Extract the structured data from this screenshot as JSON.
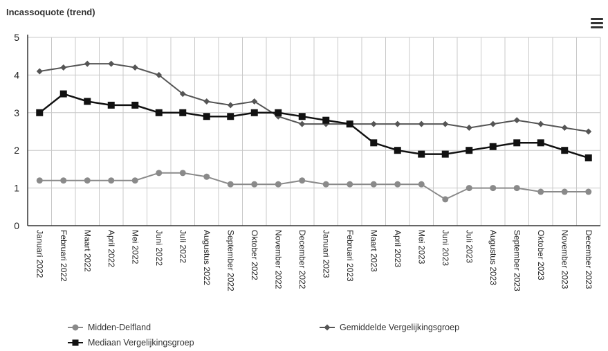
{
  "title": "Incassoquote (trend)",
  "menu_icon": "hamburger-menu-icon",
  "chart_data": {
    "type": "line",
    "title": "Incassoquote (trend)",
    "xlabel": "",
    "ylabel": "",
    "ylim": [
      0,
      5
    ],
    "yticks": [
      "0",
      "1",
      "2",
      "3",
      "4",
      "5"
    ],
    "grid": true,
    "legend_position": "bottom",
    "categories": [
      "Januari 2022",
      "Februari 2022",
      "Maart 2022",
      "April 2022",
      "Mei 2022",
      "Juni 2022",
      "Juli 2022",
      "Augustus 2022",
      "September 2022",
      "Oktober 2022",
      "November 2022",
      "December 2022",
      "Januari 2023",
      "Februari 2023",
      "Maart 2023",
      "April 2023",
      "Mei 2023",
      "Juni 2023",
      "Juli 2023",
      "Augustus 2023",
      "September 2023",
      "Oktober 2023",
      "November 2023",
      "December 2023"
    ],
    "series": [
      {
        "name": "Midden-Delfland",
        "color": "#8a8a8a",
        "marker": "circle",
        "values": [
          1.2,
          1.2,
          1.2,
          1.2,
          1.2,
          1.4,
          1.4,
          1.3,
          1.1,
          1.1,
          1.1,
          1.2,
          1.1,
          1.1,
          1.1,
          1.1,
          1.1,
          0.7,
          1.0,
          1.0,
          1.0,
          0.9,
          0.9,
          0.9
        ]
      },
      {
        "name": "Gemiddelde Vergelijkingsgroep",
        "color": "#555555",
        "marker": "diamond",
        "values": [
          4.1,
          4.2,
          4.3,
          4.3,
          4.2,
          4.0,
          3.5,
          3.3,
          3.2,
          3.3,
          2.9,
          2.7,
          2.7,
          2.7,
          2.7,
          2.7,
          2.7,
          2.7,
          2.6,
          2.7,
          2.8,
          2.7,
          2.6,
          2.5
        ]
      },
      {
        "name": "Mediaan Vergelijkingsgroep",
        "color": "#111111",
        "marker": "square",
        "values": [
          3.0,
          3.5,
          3.3,
          3.2,
          3.2,
          3.0,
          3.0,
          2.9,
          2.9,
          3.0,
          3.0,
          2.9,
          2.8,
          2.7,
          2.2,
          2.0,
          1.9,
          1.9,
          2.0,
          2.1,
          2.2,
          2.2,
          2.0,
          1.8
        ]
      }
    ]
  }
}
